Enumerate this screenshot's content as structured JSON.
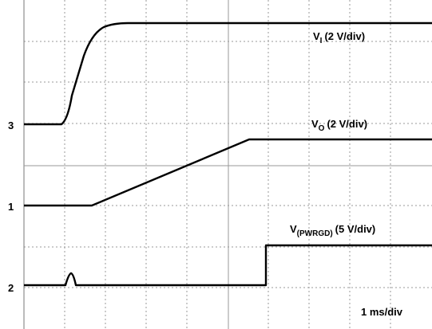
{
  "channels": {
    "ch1": "1",
    "ch2": "2",
    "ch3": "3"
  },
  "traces": [
    {
      "symbol": "V",
      "subscript": "I",
      "scale": "(2 V/div)"
    },
    {
      "symbol": "V",
      "subscript": "O",
      "scale": "(2 V/div)"
    },
    {
      "symbol": "V",
      "subscript": "(PWRGD)",
      "scale": "(5 V/div)"
    }
  ],
  "timebase": "1 ms/div"
}
